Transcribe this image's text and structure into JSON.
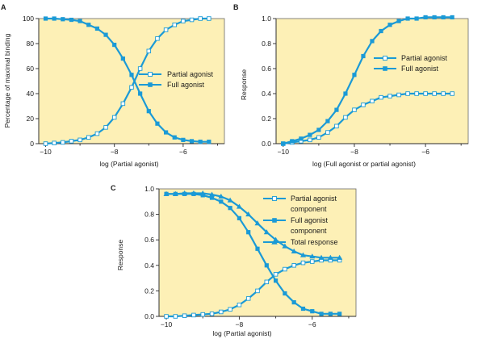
{
  "colors": {
    "series": "#1b9ad6",
    "panel_bg": "#fdf0b6",
    "axis": "#2a2a2a"
  },
  "chart_data": [
    {
      "panel": "A",
      "type": "line",
      "xlabel": "log (Partial agonist)",
      "ylabel": "Percentage of maximal binding",
      "xlim": [
        -10.2,
        -4.8
      ],
      "ylim": [
        0,
        100
      ],
      "xticks": [
        -10,
        -8,
        -6
      ],
      "xtick_labels": [
        "−10",
        "−8",
        "−6"
      ],
      "yticks": [
        0,
        20,
        40,
        60,
        80,
        100
      ],
      "ytick_labels": [
        "0",
        "20",
        "40",
        "60",
        "80",
        "100"
      ],
      "legend_position": "center-right",
      "series": [
        {
          "name": "Partial agonist",
          "marker": "open-square",
          "x": [
            -10,
            -9.75,
            -9.5,
            -9.25,
            -9,
            -8.75,
            -8.5,
            -8.25,
            -8,
            -7.75,
            -7.5,
            -7.25,
            -7,
            -6.75,
            -6.5,
            -6.25,
            -6,
            -5.75,
            -5.5,
            -5.25
          ],
          "y": [
            0,
            0.5,
            1,
            2,
            3,
            5,
            8,
            13,
            21,
            32,
            45,
            60,
            74,
            84,
            91,
            95,
            98,
            99,
            100,
            100
          ]
        },
        {
          "name": "Full agonist",
          "marker": "filled-square",
          "x": [
            -10,
            -9.75,
            -9.5,
            -9.25,
            -9,
            -8.75,
            -8.5,
            -8.25,
            -8,
            -7.75,
            -7.5,
            -7.25,
            -7,
            -6.75,
            -6.5,
            -6.25,
            -6,
            -5.75,
            -5.5,
            -5.25
          ],
          "y": [
            100,
            100,
            99.5,
            99,
            98,
            95,
            92,
            87,
            79,
            68,
            55,
            40,
            26,
            16,
            9,
            5,
            3,
            2,
            1.5,
            1.5
          ]
        }
      ]
    },
    {
      "panel": "B",
      "type": "line",
      "xlabel": "log (Full agonist or partial agonist)",
      "ylabel": "Response",
      "xlim": [
        -10.2,
        -4.8
      ],
      "ylim": [
        0,
        1.0
      ],
      "xticks": [
        -10,
        -8,
        -6
      ],
      "xtick_labels": [
        "−10",
        "−8",
        "−6"
      ],
      "yticks": [
        0,
        0.2,
        0.4,
        0.6,
        0.8,
        1.0
      ],
      "ytick_labels": [
        "0.0",
        "0.2",
        "0.4",
        "0.6",
        "0.8",
        "1.0"
      ],
      "legend_position": "right",
      "series": [
        {
          "name": "Partial agonist",
          "marker": "open-square",
          "x": [
            -10,
            -9.75,
            -9.5,
            -9.25,
            -9,
            -8.75,
            -8.5,
            -8.25,
            -8,
            -7.75,
            -7.5,
            -7.25,
            -7,
            -6.75,
            -6.5,
            -6.25,
            -6,
            -5.75,
            -5.5,
            -5.25
          ],
          "y": [
            0,
            0.01,
            0.02,
            0.03,
            0.05,
            0.09,
            0.14,
            0.21,
            0.27,
            0.31,
            0.34,
            0.37,
            0.38,
            0.39,
            0.4,
            0.4,
            0.4,
            0.4,
            0.4,
            0.4
          ]
        },
        {
          "name": "Full agonist",
          "marker": "filled-square",
          "x": [
            -10,
            -9.75,
            -9.5,
            -9.25,
            -9,
            -8.75,
            -8.5,
            -8.25,
            -8,
            -7.75,
            -7.5,
            -7.25,
            -7,
            -6.75,
            -6.5,
            -6.25,
            -6,
            -5.75,
            -5.5,
            -5.25
          ],
          "y": [
            0,
            0.02,
            0.04,
            0.07,
            0.11,
            0.18,
            0.27,
            0.4,
            0.55,
            0.7,
            0.82,
            0.9,
            0.95,
            0.98,
            1.0,
            1.0,
            1.01,
            1.01,
            1.01,
            1.01
          ]
        }
      ]
    },
    {
      "panel": "C",
      "type": "line",
      "xlabel": "log (Partial agonist)",
      "ylabel": "Response",
      "xlim": [
        -10.2,
        -4.8
      ],
      "ylim": [
        0,
        1.0
      ],
      "xticks": [
        -10,
        -8,
        -6
      ],
      "xtick_labels": [
        "−10",
        "−8",
        "−6"
      ],
      "yticks": [
        0,
        0.2,
        0.4,
        0.6,
        0.8,
        1.0
      ],
      "ytick_labels": [
        "0.0",
        "0.2",
        "0.4",
        "0.6",
        "0.8",
        "1.0"
      ],
      "legend_position": "top-right",
      "series": [
        {
          "name": "Partial agonist component",
          "marker": "open-square",
          "x": [
            -10,
            -9.75,
            -9.5,
            -9.25,
            -9,
            -8.75,
            -8.5,
            -8.25,
            -8,
            -7.75,
            -7.5,
            -7.25,
            -7,
            -6.75,
            -6.5,
            -6.25,
            -6,
            -5.75,
            -5.5,
            -5.25
          ],
          "y": [
            0,
            0,
            0.005,
            0.01,
            0.015,
            0.02,
            0.035,
            0.055,
            0.09,
            0.14,
            0.2,
            0.27,
            0.33,
            0.37,
            0.4,
            0.42,
            0.43,
            0.44,
            0.44,
            0.44
          ]
        },
        {
          "name": "Full agonist component",
          "marker": "filled-square",
          "x": [
            -10,
            -9.75,
            -9.5,
            -9.25,
            -9,
            -8.75,
            -8.5,
            -8.25,
            -8,
            -7.75,
            -7.5,
            -7.25,
            -7,
            -6.75,
            -6.5,
            -6.25,
            -6,
            -5.75,
            -5.5,
            -5.25
          ],
          "y": [
            0.96,
            0.96,
            0.96,
            0.96,
            0.95,
            0.93,
            0.9,
            0.85,
            0.77,
            0.66,
            0.53,
            0.4,
            0.28,
            0.18,
            0.11,
            0.06,
            0.04,
            0.02,
            0.02,
            0.02
          ]
        },
        {
          "name": "Total response",
          "marker": "filled-triangle",
          "x": [
            -10,
            -9.75,
            -9.5,
            -9.25,
            -9,
            -8.75,
            -8.5,
            -8.25,
            -8,
            -7.75,
            -7.5,
            -7.25,
            -7,
            -6.75,
            -6.5,
            -6.25,
            -6,
            -5.75,
            -5.5,
            -5.25
          ],
          "y": [
            0.96,
            0.96,
            0.965,
            0.965,
            0.965,
            0.955,
            0.94,
            0.91,
            0.86,
            0.8,
            0.73,
            0.66,
            0.6,
            0.55,
            0.51,
            0.48,
            0.47,
            0.46,
            0.46,
            0.46
          ]
        }
      ]
    }
  ]
}
